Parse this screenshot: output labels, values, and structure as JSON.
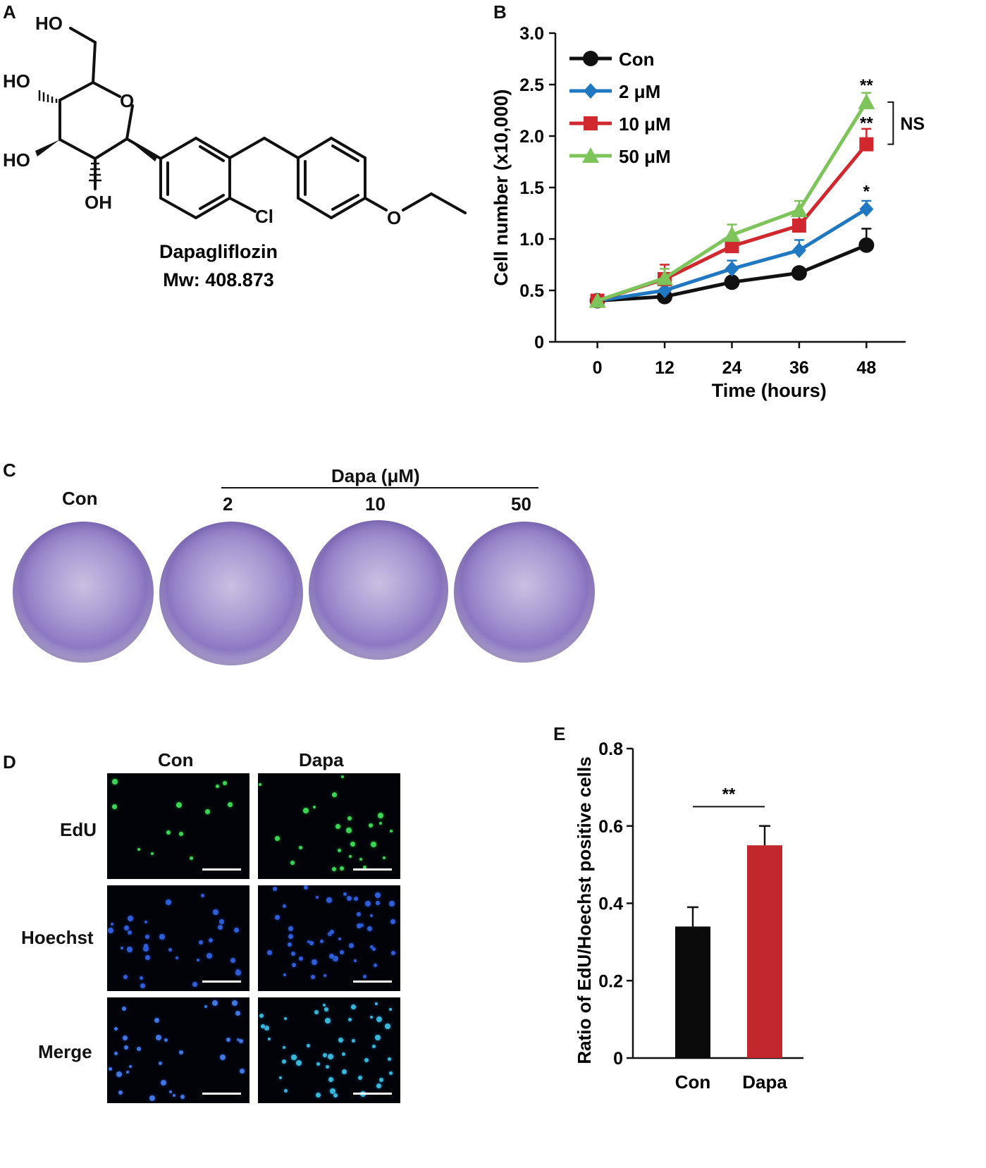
{
  "panels": {
    "a": "A",
    "b": "B",
    "c": "C",
    "d": "D",
    "e": "E"
  },
  "molecule": {
    "name": "Dapagliflozin",
    "mw": "Mw: 408.873",
    "atoms": {
      "ho_top": "HO",
      "ho_left": "HO",
      "ho_lower": "HO",
      "oh_bottom": "OH",
      "o_ring": "O",
      "cl": "Cl",
      "o_ether": "O"
    }
  },
  "chart_data": [
    {
      "type": "line",
      "panel": "B",
      "xlabel": "Time (hours)",
      "ylabel": "Cell number (x10,000)",
      "x": [
        0,
        12,
        24,
        36,
        48
      ],
      "xticks": [
        "0",
        "12",
        "24",
        "36",
        "48"
      ],
      "yticks": [
        "0",
        "0.5",
        "1.0",
        "1.5",
        "2.0",
        "2.5",
        "3.0"
      ],
      "ylim": [
        0,
        3.0
      ],
      "xlim": [
        -7.5,
        55
      ],
      "legend_position": "top-left",
      "series": [
        {
          "name": "Con",
          "values": [
            0.4,
            0.44,
            0.58,
            0.67,
            0.94
          ],
          "errors": [
            0.0,
            0.04,
            0.05,
            0.05,
            0.16
          ],
          "color": "#111111",
          "marker": "circle"
        },
        {
          "name": "2 μM",
          "values": [
            0.4,
            0.5,
            0.71,
            0.89,
            1.29
          ],
          "errors": [
            0.0,
            0.06,
            0.08,
            0.1,
            0.08
          ],
          "color": "#1f78c1",
          "marker": "diamond"
        },
        {
          "name": "10 μM",
          "values": [
            0.4,
            0.61,
            0.93,
            1.13,
            1.92
          ],
          "errors": [
            0.0,
            0.14,
            0.1,
            0.14,
            0.15
          ],
          "color": "#d1272e",
          "marker": "square"
        },
        {
          "name": "50 μM",
          "values": [
            0.4,
            0.62,
            1.04,
            1.28,
            2.33
          ],
          "errors": [
            0.0,
            0.09,
            0.1,
            0.09,
            0.09
          ],
          "color": "#7dc45a",
          "marker": "triangle"
        }
      ],
      "annotations": {
        "sig_2uM": "*",
        "sig_10uM": "**",
        "sig_50uM": "**",
        "ns": "NS"
      }
    },
    {
      "type": "bar",
      "panel": "E",
      "categories": [
        "Con",
        "Dapa"
      ],
      "values": [
        0.34,
        0.55
      ],
      "errors": [
        0.05,
        0.05
      ],
      "colors": [
        "#0b0b0b",
        "#c1272d"
      ],
      "ylabel": "Ratio of EdU/Hoechst positive cells",
      "yticks": [
        "0",
        "0.2",
        "0.4",
        "0.6",
        "0.8"
      ],
      "ylim": [
        0,
        0.8
      ],
      "significance": "**"
    }
  ],
  "panel_c": {
    "header": "Dapa (μM)",
    "labels": [
      "Con",
      "2",
      "10",
      "50"
    ]
  },
  "panel_d": {
    "columns": [
      "Con",
      "Dapa"
    ],
    "rows": [
      "EdU",
      "Hoechst",
      "Merge"
    ]
  }
}
